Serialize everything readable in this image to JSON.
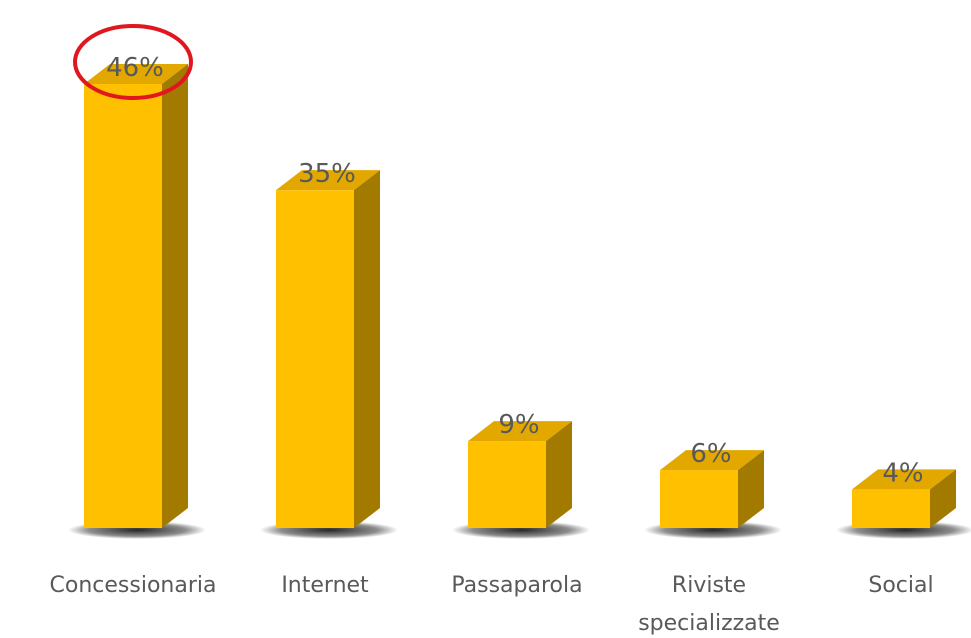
{
  "chart_data": {
    "type": "bar",
    "categories": [
      "Concessionaria",
      "Internet",
      "Passaparola",
      "Riviste specializzate",
      "Social"
    ],
    "category_lines": [
      [
        "Concessionaria"
      ],
      [
        "Internet"
      ],
      [
        "Passaparola"
      ],
      [
        "Riviste",
        "specializzate"
      ],
      [
        "Social"
      ]
    ],
    "values": [
      46,
      35,
      9,
      6,
      4
    ],
    "value_labels": [
      "46%",
      "35%",
      "9%",
      "6%",
      "4%"
    ],
    "ylim": [
      0,
      46
    ],
    "grid": false,
    "legend": "none",
    "highlighted_index": 0,
    "colors": {
      "bar_front": "#FFC000",
      "bar_top": "#E3A800",
      "bar_side": "#A37A00",
      "highlight_circle": "#E0171F",
      "label_text": "#595959"
    }
  }
}
